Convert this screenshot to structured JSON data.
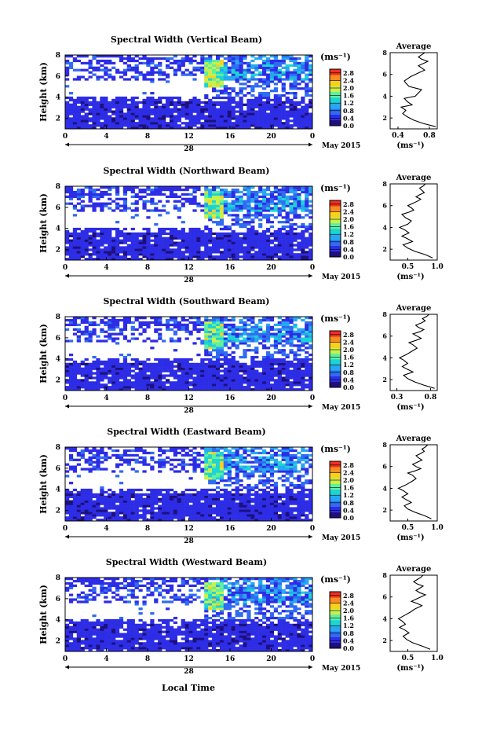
{
  "figure": {
    "xlabel": "Local Time",
    "date_label": "May 2015",
    "day_label": "28",
    "ylabel": "Height (km)",
    "avg_title": "Average",
    "cbar_unit": "(ms⁻¹)",
    "avg_xunit": "(ms⁻¹)",
    "colormap": [
      "#1e0f7a",
      "#2d2de6",
      "#2f6cf2",
      "#26a8f0",
      "#1cd4d4",
      "#5ff0a0",
      "#c8f04a",
      "#f8d020",
      "#f88c20",
      "#f03020"
    ],
    "colorbar_ticks": [
      "0.0",
      "0.4",
      "0.8",
      "1.2",
      "1.6",
      "2.0",
      "2.4",
      "2.8"
    ]
  },
  "chart_data": [
    {
      "type": "heatmap",
      "title": "Spectral Width (Vertical Beam)",
      "x_ticks": [
        "0",
        "4",
        "8",
        "12",
        "16",
        "20",
        "0"
      ],
      "y_ticks": [
        "2",
        "4",
        "6",
        "8"
      ],
      "xlim": [
        0,
        24
      ],
      "ylim": [
        1,
        8
      ],
      "colorbar_range": [
        0.0,
        3.0
      ],
      "profile": {
        "title": "Average",
        "x_ticks": [
          "0.4",
          "0.8"
        ],
        "xlim": [
          0.3,
          0.9
        ],
        "y_ticks": [
          "2",
          "4",
          "6",
          "8"
        ],
        "ylim": [
          1,
          8
        ],
        "x": [
          0.88,
          0.72,
          0.6,
          0.52,
          0.46,
          0.5,
          0.44,
          0.58,
          0.52,
          0.48,
          0.62,
          0.66,
          0.7,
          0.54,
          0.5,
          0.48,
          0.52,
          0.56,
          0.62,
          0.68,
          0.74,
          0.7,
          0.66,
          0.72,
          0.78,
          0.7,
          0.66,
          0.7,
          0.74
        ],
        "y": [
          1.2,
          1.5,
          1.8,
          2.1,
          2.4,
          2.7,
          3.0,
          3.2,
          3.5,
          3.8,
          4.0,
          4.3,
          4.6,
          4.9,
          5.2,
          5.4,
          5.6,
          5.8,
          6.0,
          6.2,
          6.4,
          6.6,
          6.8,
          7.0,
          7.2,
          7.4,
          7.6,
          7.8,
          8.0
        ]
      }
    },
    {
      "type": "heatmap",
      "title": "Spectral Width (Northward Beam)",
      "x_ticks": [
        "0",
        "4",
        "8",
        "12",
        "16",
        "20",
        "0"
      ],
      "y_ticks": [
        "2",
        "4",
        "6",
        "8"
      ],
      "xlim": [
        0,
        24
      ],
      "ylim": [
        1,
        8
      ],
      "colorbar_range": [
        0.0,
        3.0
      ],
      "profile": {
        "title": "Average",
        "x_ticks": [
          "0.5",
          "1.0"
        ],
        "xlim": [
          0.2,
          1.0
        ],
        "y_ticks": [
          "2",
          "4",
          "6",
          "8"
        ],
        "ylim": [
          1,
          8
        ],
        "x": [
          0.92,
          0.8,
          0.62,
          0.5,
          0.42,
          0.58,
          0.48,
          0.4,
          0.52,
          0.44,
          0.36,
          0.5,
          0.56,
          0.46,
          0.4,
          0.52,
          0.6,
          0.56,
          0.5,
          0.58,
          0.66,
          0.72,
          0.64,
          0.7,
          0.78,
          0.74,
          0.7,
          0.76,
          0.8
        ],
        "y": [
          1.2,
          1.5,
          1.8,
          2.1,
          2.4,
          2.7,
          3.0,
          3.2,
          3.5,
          3.8,
          4.0,
          4.3,
          4.6,
          4.9,
          5.2,
          5.4,
          5.6,
          5.8,
          6.0,
          6.2,
          6.4,
          6.6,
          6.8,
          7.0,
          7.2,
          7.4,
          7.6,
          7.8,
          8.0
        ]
      }
    },
    {
      "type": "heatmap",
      "title": "Spectral Width (Southward Beam)",
      "x_ticks": [
        "0",
        "4",
        "8",
        "12",
        "16",
        "20",
        "0"
      ],
      "y_ticks": [
        "2",
        "4",
        "6",
        "8"
      ],
      "xlim": [
        0,
        24
      ],
      "ylim": [
        1,
        8
      ],
      "colorbar_range": [
        0.0,
        3.0
      ],
      "profile": {
        "title": "Average",
        "x_ticks": [
          "0.3",
          "0.8"
        ],
        "xlim": [
          0.2,
          0.9
        ],
        "y_ticks": [
          "2",
          "4",
          "6",
          "8"
        ],
        "ylim": [
          1,
          8
        ],
        "x": [
          0.86,
          0.7,
          0.56,
          0.46,
          0.4,
          0.54,
          0.44,
          0.38,
          0.46,
          0.4,
          0.34,
          0.44,
          0.52,
          0.6,
          0.54,
          0.48,
          0.58,
          0.66,
          0.6,
          0.54,
          0.64,
          0.7,
          0.62,
          0.58,
          0.66,
          0.72,
          0.68,
          0.74,
          0.78
        ],
        "y": [
          1.2,
          1.5,
          1.8,
          2.1,
          2.4,
          2.7,
          3.0,
          3.2,
          3.5,
          3.8,
          4.0,
          4.3,
          4.6,
          4.9,
          5.2,
          5.4,
          5.6,
          5.8,
          6.0,
          6.2,
          6.4,
          6.6,
          6.8,
          7.0,
          7.2,
          7.4,
          7.6,
          7.8,
          8.0
        ]
      }
    },
    {
      "type": "heatmap",
      "title": "Spectral Width (Eastward Beam)",
      "x_ticks": [
        "0",
        "4",
        "8",
        "12",
        "16",
        "20",
        "0"
      ],
      "y_ticks": [
        "2",
        "4",
        "6",
        "8"
      ],
      "xlim": [
        0,
        24
      ],
      "ylim": [
        1,
        8
      ],
      "colorbar_range": [
        0.0,
        3.0
      ],
      "profile": {
        "title": "Average",
        "x_ticks": [
          "0.5",
          "1.0"
        ],
        "xlim": [
          0.2,
          1.0
        ],
        "y_ticks": [
          "2",
          "4",
          "6",
          "8"
        ],
        "ylim": [
          1,
          8
        ],
        "x": [
          0.9,
          0.78,
          0.62,
          0.5,
          0.44,
          0.56,
          0.46,
          0.4,
          0.5,
          0.42,
          0.34,
          0.46,
          0.56,
          0.64,
          0.58,
          0.5,
          0.62,
          0.72,
          0.64,
          0.58,
          0.66,
          0.74,
          0.68,
          0.64,
          0.72,
          0.78,
          0.74,
          0.8,
          0.84
        ],
        "y": [
          1.2,
          1.5,
          1.8,
          2.1,
          2.4,
          2.7,
          3.0,
          3.2,
          3.5,
          3.8,
          4.0,
          4.3,
          4.6,
          4.9,
          5.2,
          5.4,
          5.6,
          5.8,
          6.0,
          6.2,
          6.4,
          6.6,
          6.8,
          7.0,
          7.2,
          7.4,
          7.6,
          7.8,
          8.0
        ]
      }
    },
    {
      "type": "heatmap",
      "title": "Spectral Width (Westward Beam)",
      "x_ticks": [
        "0",
        "4",
        "8",
        "12",
        "16",
        "20",
        "0"
      ],
      "y_ticks": [
        "2",
        "4",
        "6",
        "8"
      ],
      "xlim": [
        0,
        24
      ],
      "ylim": [
        1,
        8
      ],
      "colorbar_range": [
        0.0,
        3.0
      ],
      "profile": {
        "title": "Average",
        "x_ticks": [
          "0.5",
          "1.0"
        ],
        "xlim": [
          0.2,
          1.0
        ],
        "y_ticks": [
          "2",
          "4",
          "6",
          "8"
        ],
        "ylim": [
          1,
          8
        ],
        "x": [
          0.88,
          0.74,
          0.58,
          0.48,
          0.42,
          0.52,
          0.44,
          0.36,
          0.46,
          0.4,
          0.34,
          0.44,
          0.54,
          0.62,
          0.74,
          0.66,
          0.56,
          0.64,
          0.72,
          0.8,
          0.7,
          0.64,
          0.7,
          0.76,
          0.66,
          0.6,
          0.66,
          0.72,
          0.76
        ],
        "y": [
          1.2,
          1.5,
          1.8,
          2.1,
          2.4,
          2.7,
          3.0,
          3.2,
          3.5,
          3.8,
          4.0,
          4.3,
          4.6,
          4.9,
          5.2,
          5.4,
          5.6,
          5.8,
          6.0,
          6.2,
          6.4,
          6.6,
          6.8,
          7.0,
          7.2,
          7.4,
          7.6,
          7.8,
          8.0
        ]
      }
    }
  ]
}
